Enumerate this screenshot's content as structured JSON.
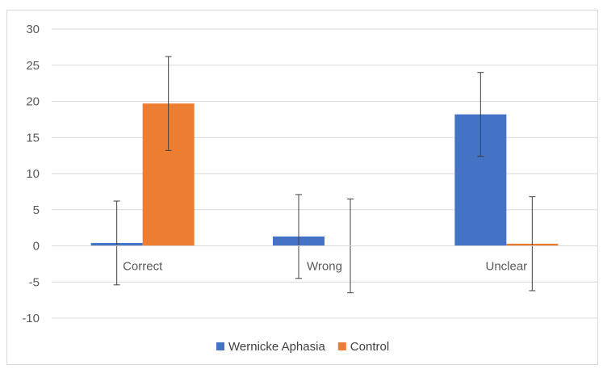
{
  "chart_data": {
    "type": "bar",
    "title": "",
    "xlabel": "",
    "ylabel": "",
    "categories": [
      "Correct",
      "Wrong",
      "Unclear"
    ],
    "series": [
      {
        "name": "Wernicke Aphasia",
        "color": "#4472c4",
        "values": [
          0.4,
          1.3,
          18.2
        ],
        "error": [
          5.8,
          5.8,
          5.8
        ]
      },
      {
        "name": "Control",
        "color": "#ed7d31",
        "values": [
          19.7,
          0.0,
          0.3
        ],
        "error": [
          6.5,
          6.5,
          6.5
        ]
      }
    ],
    "ylim": [
      -10,
      30
    ],
    "yticks": [
      30,
      25,
      20,
      15,
      10,
      5,
      0,
      -5,
      -10
    ],
    "grid": true,
    "legend_position": "bottom"
  }
}
